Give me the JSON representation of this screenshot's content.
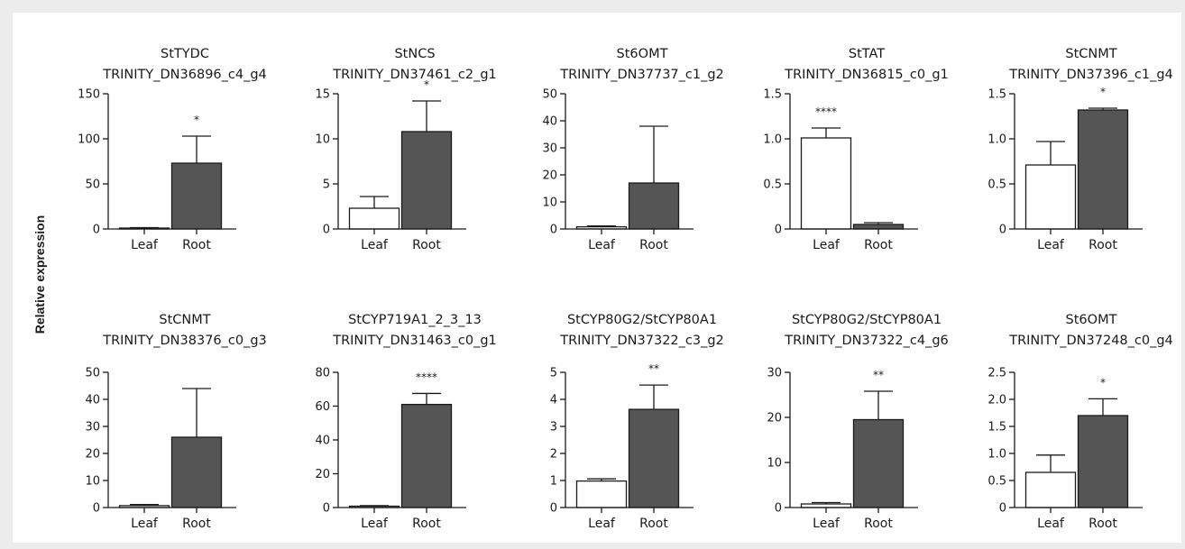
{
  "ylabel": "Relative expression",
  "colors": {
    "leaf": "#ffffff",
    "root": "#555555",
    "stroke": "#1a1a1a",
    "background": "#ececec"
  },
  "chart_data": [
    {
      "type": "bar",
      "title": [
        "StTYDC",
        "TRINITY_DN36896_c4_g4"
      ],
      "categories": [
        "Leaf",
        "Root"
      ],
      "values": [
        1,
        73
      ],
      "errors": [
        0.5,
        30
      ],
      "ylim": [
        0,
        150
      ],
      "yticks": [
        "0",
        "50",
        "100",
        "150"
      ],
      "significance": "*"
    },
    {
      "type": "bar",
      "title": [
        "StNCS",
        "TRINITY_DN37461_c2_g1"
      ],
      "categories": [
        "Leaf",
        "Root"
      ],
      "values": [
        2.3,
        10.8
      ],
      "errors": [
        1.3,
        3.4
      ],
      "ylim": [
        0,
        15
      ],
      "yticks": [
        "0",
        "5",
        "10",
        "15"
      ],
      "significance": "*"
    },
    {
      "type": "bar",
      "title": [
        "St6OMT",
        "TRINITY_DN37737_c1_g2"
      ],
      "categories": [
        "Leaf",
        "Root"
      ],
      "values": [
        0.8,
        17
      ],
      "errors": [
        0.3,
        21
      ],
      "ylim": [
        0,
        50
      ],
      "yticks": [
        "0",
        "10",
        "20",
        "30",
        "40",
        "50"
      ],
      "significance": ""
    },
    {
      "type": "bar",
      "title": [
        "StTAT",
        "TRINITY_DN36815_c0_g1"
      ],
      "categories": [
        "Leaf",
        "Root"
      ],
      "values": [
        1.01,
        0.05
      ],
      "errors": [
        0.11,
        0.02
      ],
      "ylim": [
        0,
        1.5
      ],
      "yticks": [
        "0",
        "0.5",
        "1.0",
        "1.5"
      ],
      "significance": "****"
    },
    {
      "type": "bar",
      "title": [
        "StCNMT",
        "TRINITY_DN37396_c1_g4"
      ],
      "categories": [
        "Leaf",
        "Root"
      ],
      "values": [
        0.71,
        1.32
      ],
      "errors": [
        0.26,
        0.02
      ],
      "ylim": [
        0,
        1.5
      ],
      "yticks": [
        "0",
        "0.5",
        "1.0",
        "1.5"
      ],
      "significance": "*"
    },
    {
      "type": "bar",
      "title": [
        "StCNMT",
        "TRINITY_DN38376_c0_g3"
      ],
      "categories": [
        "Leaf",
        "Root"
      ],
      "values": [
        0.7,
        26
      ],
      "errors": [
        0.4,
        18
      ],
      "ylim": [
        0,
        50
      ],
      "yticks": [
        "0",
        "10",
        "20",
        "30",
        "40",
        "50"
      ],
      "significance": ""
    },
    {
      "type": "bar",
      "title": [
        "StCYP719A1_2_3_13",
        "TRINITY_DN31463_c0_g1"
      ],
      "categories": [
        "Leaf",
        "Root"
      ],
      "values": [
        0.8,
        61
      ],
      "errors": [
        0.3,
        6.5
      ],
      "ylim": [
        0,
        80
      ],
      "yticks": [
        "0",
        "20",
        "40",
        "60",
        "80"
      ],
      "significance": "****"
    },
    {
      "type": "bar",
      "title": [
        "StCYP80G2/StCYP80A1",
        "TRINITY_DN37322_c3_g2"
      ],
      "categories": [
        "Leaf",
        "Root"
      ],
      "values": [
        0.98,
        3.63
      ],
      "errors": [
        0.08,
        0.9
      ],
      "ylim": [
        0,
        5
      ],
      "yticks": [
        "0",
        "1",
        "2",
        "3",
        "4",
        "5"
      ],
      "significance": "**"
    },
    {
      "type": "bar",
      "title": [
        "StCYP80G2/StCYP80A1",
        "TRINITY_DN37322_c4_g6"
      ],
      "categories": [
        "Leaf",
        "Root"
      ],
      "values": [
        0.8,
        19.5
      ],
      "errors": [
        0.3,
        6.3
      ],
      "ylim": [
        0,
        30
      ],
      "yticks": [
        "0",
        "10",
        "20",
        "30"
      ],
      "significance": "**"
    },
    {
      "type": "bar",
      "title": [
        "St6OMT",
        "TRINITY_DN37248_c0_g4"
      ],
      "categories": [
        "Leaf",
        "Root"
      ],
      "values": [
        0.65,
        1.7
      ],
      "errors": [
        0.32,
        0.31
      ],
      "ylim": [
        0,
        2.5
      ],
      "yticks": [
        "0",
        "0.5",
        "1.0",
        "1.5",
        "2.0",
        "2.5"
      ],
      "significance": "*"
    }
  ]
}
